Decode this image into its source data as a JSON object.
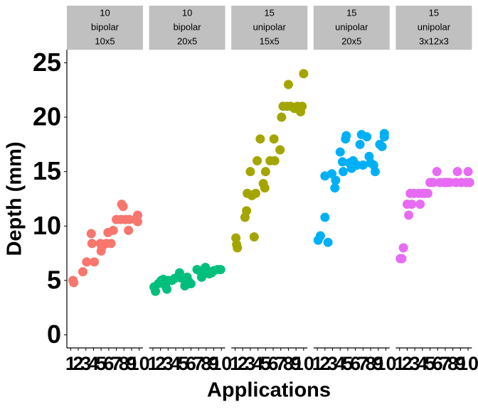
{
  "chart_data": {
    "type": "scatter",
    "xlabel": "Applications",
    "ylabel": "Depth (mm)",
    "ylim": [
      -1.2,
      26.2
    ],
    "yticks": [
      0,
      5,
      10,
      15,
      20,
      25
    ],
    "xlim": [
      0.5,
      10.5
    ],
    "xticks": [
      1,
      2,
      3,
      4,
      5,
      6,
      7,
      8,
      9,
      10
    ],
    "panels": [
      {
        "strip": [
          "10",
          "bipolar",
          "10x5"
        ],
        "color": "#F8766D",
        "x": [
          1.3,
          1.4,
          2.6,
          3.1,
          3.7,
          3.8,
          4.1,
          4.9,
          5.0,
          5.1,
          5.7,
          5.9,
          6.3,
          6.6,
          7.0,
          7.6,
          7.7,
          7.9,
          8.2,
          8.6,
          8.7,
          9.5,
          9.8,
          9.8
        ],
        "values": [
          5.0,
          4.8,
          5.8,
          6.7,
          9.3,
          8.4,
          6.7,
          8.4,
          7.7,
          8.1,
          8.4,
          9.4,
          8.4,
          9.6,
          10.6,
          10.6,
          12.0,
          11.8,
          10.6,
          9.6,
          10.6,
          10.6,
          11.0,
          10.4
        ]
      },
      {
        "strip": [
          "10",
          "bipolar",
          "20x5"
        ],
        "color": "#00BF7D",
        "x": [
          1.15,
          1.34,
          1.71,
          2.09,
          2.37,
          2.65,
          2.84,
          3.0,
          3.5,
          3.9,
          4.5,
          4.8,
          5.2,
          5.5,
          5.7,
          6.0,
          6.8,
          7.1,
          7.4,
          7.9,
          8.1,
          8.4,
          8.7,
          9.0,
          9.5,
          9.9
        ],
        "values": [
          4.4,
          4.0,
          4.7,
          5.0,
          5.1,
          4.5,
          4.2,
          5.0,
          5.0,
          5.2,
          5.7,
          5.2,
          4.5,
          5.3,
          4.9,
          4.7,
          6.0,
          5.9,
          5.3,
          6.2,
          5.9,
          5.6,
          5.7,
          5.9,
          6.0,
          6.0
        ]
      },
      {
        "strip": [
          "15",
          "unipolar",
          "15x5"
        ],
        "color": "#A3A500",
        "x": [
          1.1,
          1.2,
          1.3,
          2.3,
          2.5,
          2.6,
          3.0,
          3.2,
          3.5,
          3.7,
          3.9,
          4.3,
          4.7,
          4.9,
          5.0,
          5.6,
          6.1,
          6.2,
          6.9,
          7.1,
          7.3,
          7.8,
          8.0,
          8.3,
          8.8,
          9.2,
          9.6,
          9.8,
          10.0
        ],
        "values": [
          8.9,
          8.3,
          8.0,
          10.8,
          11.4,
          13.0,
          15.0,
          12.8,
          9.0,
          13.0,
          16.0,
          18.0,
          13.9,
          13.5,
          15.0,
          16.0,
          18.0,
          16.0,
          17.0,
          20.0,
          21.0,
          21.0,
          23.0,
          21.0,
          20.8,
          21.0,
          20.5,
          21.0,
          24.0
        ]
      },
      {
        "strip": [
          "15",
          "unipolar",
          "20x5"
        ],
        "color": "#00B0F6",
        "x": [
          1.1,
          1.4,
          2.0,
          2.0,
          2.4,
          2.9,
          3.3,
          3.4,
          4.0,
          4.3,
          4.4,
          4.7,
          4.8,
          5.2,
          5.5,
          5.7,
          6.2,
          6.6,
          6.8,
          7.0,
          7.5,
          7.8,
          8.0,
          8.4,
          8.6,
          9.2,
          9.5,
          9.8,
          9.8
        ],
        "values": [
          8.7,
          9.1,
          10.8,
          14.6,
          8.5,
          14.8,
          13.5,
          14.2,
          16.8,
          15.9,
          15.0,
          18.0,
          18.3,
          15.8,
          15.3,
          16.0,
          15.6,
          17.5,
          18.4,
          15.6,
          18.2,
          16.4,
          15.8,
          15.6,
          15.0,
          17.5,
          17.3,
          18.5,
          18.2
        ]
      },
      {
        "strip": [
          "15",
          "unipolar",
          "3x12x3"
        ],
        "color": "#E76BF3",
        "x": [
          1.1,
          1.3,
          1.5,
          2.0,
          2.2,
          2.4,
          2.6,
          2.9,
          3.5,
          3.7,
          4.0,
          4.3,
          4.7,
          5.0,
          5.4,
          5.9,
          6.3,
          6.9,
          7.2,
          7.6,
          8.4,
          8.6,
          9.1,
          9.8,
          10.0,
          10.2
        ],
        "values": [
          7.0,
          7.0,
          8.0,
          12.0,
          11.0,
          13.0,
          12.0,
          13.0,
          13.0,
          12.0,
          13.0,
          13.0,
          13.0,
          14.0,
          14.0,
          15.0,
          14.0,
          14.0,
          14.0,
          14.0,
          14.0,
          15.0,
          14.0,
          14.0,
          15.0,
          14.0
        ]
      }
    ]
  }
}
